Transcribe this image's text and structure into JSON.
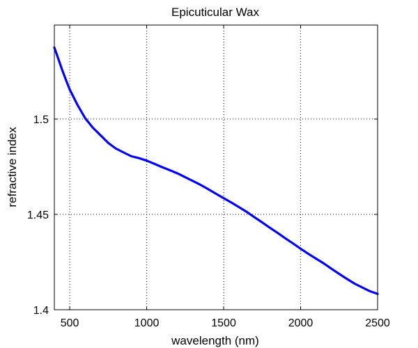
{
  "chart_data": {
    "type": "line",
    "title": "Epicuticular Wax",
    "xlabel": "wavelength (nm)",
    "ylabel": "refractive index",
    "xlim": [
      400,
      2500
    ],
    "ylim": [
      1.4,
      1.5493
    ],
    "xticks": [
      500,
      1000,
      1500,
      2000,
      2500
    ],
    "yticks": [
      1.4,
      1.45,
      1.5
    ],
    "ytick_labels": [
      "1.4",
      "1.45",
      "1.5"
    ],
    "grid": true,
    "grid_style": "dotted",
    "series": [
      {
        "color": "#0000ff",
        "points": [
          [
            400,
            1.5375
          ],
          [
            420,
            1.533
          ],
          [
            450,
            1.526
          ],
          [
            480,
            1.5195
          ],
          [
            500,
            1.5155
          ],
          [
            550,
            1.5075
          ],
          [
            600,
            1.5005
          ],
          [
            650,
            1.4955
          ],
          [
            700,
            1.4915
          ],
          [
            750,
            1.4875
          ],
          [
            800,
            1.4845
          ],
          [
            850,
            1.4825
          ],
          [
            900,
            1.4805
          ],
          [
            950,
            1.4795
          ],
          [
            1000,
            1.4782
          ],
          [
            1050,
            1.4765
          ],
          [
            1100,
            1.4748
          ],
          [
            1150,
            1.4732
          ],
          [
            1200,
            1.4715
          ],
          [
            1250,
            1.4695
          ],
          [
            1300,
            1.4675
          ],
          [
            1350,
            1.4655
          ],
          [
            1400,
            1.4632
          ],
          [
            1450,
            1.4608
          ],
          [
            1500,
            1.4585
          ],
          [
            1550,
            1.4562
          ],
          [
            1600,
            1.4538
          ],
          [
            1650,
            1.4513
          ],
          [
            1700,
            1.4485
          ],
          [
            1750,
            1.4458
          ],
          [
            1800,
            1.443
          ],
          [
            1850,
            1.4403
          ],
          [
            1900,
            1.4375
          ],
          [
            1950,
            1.4348
          ],
          [
            2000,
            1.432
          ],
          [
            2050,
            1.4293
          ],
          [
            2100,
            1.4268
          ],
          [
            2150,
            1.4243
          ],
          [
            2200,
            1.4215
          ],
          [
            2250,
            1.4188
          ],
          [
            2300,
            1.4162
          ],
          [
            2350,
            1.4137
          ],
          [
            2400,
            1.4117
          ],
          [
            2450,
            1.4097
          ],
          [
            2500,
            1.4083
          ]
        ]
      }
    ]
  }
}
